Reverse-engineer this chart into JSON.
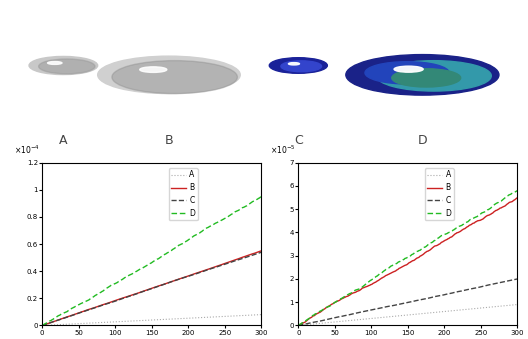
{
  "fig_width": 5.28,
  "fig_height": 3.39,
  "dpi": 100,
  "sphere_labels": [
    "A",
    "B",
    "C",
    "D"
  ],
  "left_plot": {
    "ylabel_exp": -4,
    "ylim": [
      0,
      0.00012
    ],
    "yticks": [
      0,
      2e-05,
      4e-05,
      6e-05,
      8e-05,
      0.0001,
      0.00012
    ],
    "ytick_labels": [
      "0",
      "0.2",
      "0.4",
      "0.6",
      "0.8",
      "1",
      "1.2"
    ],
    "xlim": [
      0,
      300
    ],
    "xticks": [
      0,
      50,
      100,
      150,
      200,
      250,
      300
    ]
  },
  "right_plot": {
    "ylabel_exp": -5,
    "ylim": [
      0,
      7e-05
    ],
    "yticks": [
      0,
      1e-05,
      2e-05,
      3e-05,
      4e-05,
      5e-05,
      6e-05,
      7e-05
    ],
    "ytick_labels": [
      "0",
      "1",
      "2",
      "3",
      "4",
      "5",
      "6",
      "7"
    ],
    "xlim": [
      0,
      300
    ],
    "xticks": [
      0,
      50,
      100,
      150,
      200,
      250,
      300
    ]
  },
  "line_A": {
    "color": "#aaaaaa",
    "linestyle": "dotted",
    "linewidth": 0.8
  },
  "line_B": {
    "color": "#cc2222",
    "linestyle": "solid",
    "linewidth": 1.0
  },
  "line_C": {
    "color": "#444444",
    "linestyle": "dashed",
    "linewidth": 1.0
  },
  "line_D": {
    "color": "#22bb22",
    "linestyle": "dashed",
    "linewidth": 1.0
  }
}
